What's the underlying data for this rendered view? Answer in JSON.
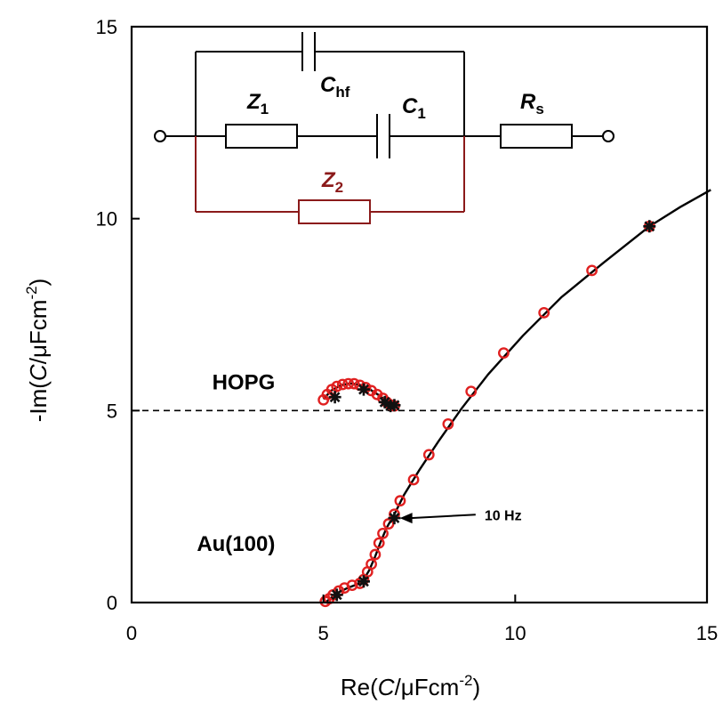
{
  "chart_data": {
    "type": "scatter",
    "title": "",
    "xlabel": {
      "pre": "Re(",
      "var": "C",
      "mid": "/μFcm",
      "sup": "-2",
      "post": ")"
    },
    "ylabel": {
      "pre": "-Im(",
      "var": "C",
      "mid": "/μFcm",
      "sup": "-2",
      "post": ")"
    },
    "xlim": [
      0,
      15
    ],
    "ylim": [
      0,
      15
    ],
    "xticks": [
      0,
      5,
      10,
      15
    ],
    "yticks": [
      0,
      5,
      10,
      15
    ],
    "xtick_labels": [
      "0",
      "5",
      "10",
      "15"
    ],
    "ytick_labels": [
      "0",
      "5",
      "10",
      "15"
    ],
    "grid": false,
    "colors": {
      "data": "#e02020",
      "fit": "#000000",
      "z2_branch": "#8b1a1a",
      "circuit": "#000000"
    },
    "reference_line": {
      "y": 5,
      "style": "dashed"
    },
    "series": [
      {
        "label": "Au(100)",
        "points": [
          [
            5.05,
            0.03
          ],
          [
            5.15,
            0.1
          ],
          [
            5.25,
            0.2
          ],
          [
            5.4,
            0.3
          ],
          [
            5.55,
            0.38
          ],
          [
            5.75,
            0.45
          ],
          [
            5.95,
            0.5
          ],
          [
            6.05,
            0.6
          ],
          [
            6.15,
            0.8
          ],
          [
            6.25,
            1.0
          ],
          [
            6.35,
            1.25
          ],
          [
            6.45,
            1.55
          ],
          [
            6.55,
            1.8
          ],
          [
            6.7,
            2.05
          ],
          [
            6.85,
            2.3
          ],
          [
            7.0,
            2.65
          ],
          [
            7.35,
            3.2
          ],
          [
            7.75,
            3.85
          ],
          [
            8.25,
            4.65
          ],
          [
            8.85,
            5.5
          ],
          [
            9.7,
            6.5
          ],
          [
            10.75,
            7.55
          ],
          [
            12.0,
            8.65
          ],
          [
            13.5,
            9.8
          ]
        ],
        "fit": [
          [
            5.05,
            0.0
          ],
          [
            5.2,
            0.12
          ],
          [
            5.4,
            0.27
          ],
          [
            5.65,
            0.39
          ],
          [
            5.9,
            0.48
          ],
          [
            6.05,
            0.6
          ],
          [
            6.2,
            0.85
          ],
          [
            6.35,
            1.2
          ],
          [
            6.5,
            1.6
          ],
          [
            6.65,
            1.95
          ],
          [
            6.85,
            2.3
          ],
          [
            7.1,
            2.8
          ],
          [
            7.5,
            3.45
          ],
          [
            8.0,
            4.2
          ],
          [
            8.6,
            5.05
          ],
          [
            9.3,
            5.95
          ],
          [
            10.2,
            6.95
          ],
          [
            11.2,
            7.95
          ],
          [
            12.3,
            8.85
          ],
          [
            13.5,
            9.8
          ],
          [
            14.3,
            10.3
          ],
          [
            15.1,
            10.75
          ]
        ],
        "markers": [
          [
            5.35,
            0.2
          ],
          [
            6.05,
            0.55
          ],
          [
            6.85,
            2.2
          ],
          [
            13.5,
            9.8
          ]
        ]
      },
      {
        "label": "HOPG",
        "points": [
          [
            5.0,
            5.28
          ],
          [
            5.1,
            5.42
          ],
          [
            5.22,
            5.55
          ],
          [
            5.35,
            5.63
          ],
          [
            5.5,
            5.68
          ],
          [
            5.65,
            5.7
          ],
          [
            5.8,
            5.7
          ],
          [
            5.95,
            5.66
          ],
          [
            6.1,
            5.6
          ],
          [
            6.25,
            5.52
          ],
          [
            6.4,
            5.42
          ],
          [
            6.55,
            5.32
          ],
          [
            6.65,
            5.22
          ],
          [
            6.75,
            5.15
          ],
          [
            6.85,
            5.12
          ]
        ],
        "fit": [
          [
            5.0,
            5.3
          ],
          [
            5.2,
            5.52
          ],
          [
            5.45,
            5.66
          ],
          [
            5.7,
            5.71
          ],
          [
            5.95,
            5.67
          ],
          [
            6.2,
            5.56
          ],
          [
            6.45,
            5.4
          ],
          [
            6.65,
            5.25
          ],
          [
            6.8,
            5.15
          ],
          [
            6.9,
            5.13
          ]
        ],
        "markers": [
          [
            5.3,
            5.35
          ],
          [
            6.05,
            5.55
          ],
          [
            6.6,
            5.22
          ],
          [
            6.75,
            5.12
          ],
          [
            6.85,
            5.14
          ]
        ]
      }
    ],
    "annotations": [
      {
        "name": "hopg-label",
        "text": "HOPG",
        "x": 2.1,
        "y": 5.55
      },
      {
        "name": "au100-label",
        "text": "Au(100)",
        "x": 1.7,
        "y": 1.35
      },
      {
        "name": "frequency-label",
        "text": "10 Hz",
        "x": 9.2,
        "y": 2.15,
        "arrow_to": [
          6.9,
          2.2
        ]
      }
    ],
    "circuit_labels": {
      "chf": {
        "main": "C",
        "sub": "hf"
      },
      "z1": {
        "main": "Z",
        "sub": "1"
      },
      "c1": {
        "main": "C",
        "sub": "1"
      },
      "rs": {
        "main": "R",
        "sub": "s"
      },
      "z2": {
        "main": "Z",
        "sub": "2"
      }
    }
  }
}
